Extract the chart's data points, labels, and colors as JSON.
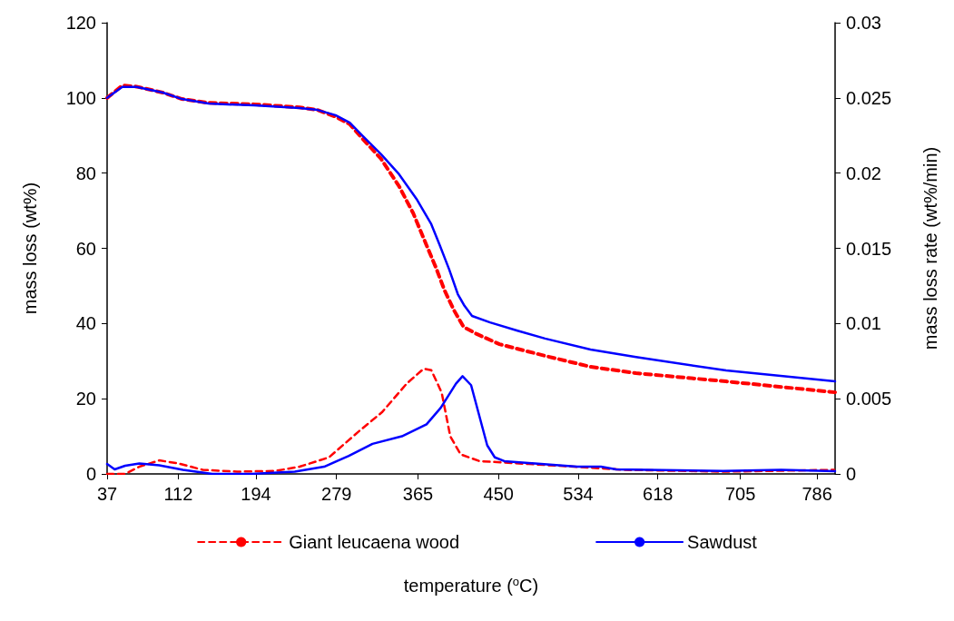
{
  "chart_data": {
    "type": "line",
    "xlabel": "temperature ($^{o}$C)",
    "ylabel": "mass loss (wt%)",
    "y2label": "mass loss rate (wt%/min)",
    "xlim": [
      37,
      805
    ],
    "xticks": [
      37,
      112,
      194,
      279,
      365,
      450,
      534,
      618,
      705,
      786
    ],
    "ylim": [
      0,
      120
    ],
    "yticks": [
      0,
      20,
      40,
      60,
      80,
      100,
      120
    ],
    "y2lim": [
      0,
      0.03
    ],
    "y2ticks": [
      0,
      0.005,
      0.01,
      0.015,
      0.02,
      0.025,
      0.03
    ],
    "grid": false,
    "legend": "bottom",
    "marker": "none",
    "series": [
      {
        "name": "Giant leucaena wood",
        "color": "#ff0000",
        "line_style": "dashed",
        "x": [
          37,
          53,
          68,
          96,
          116,
          144,
          192,
          240,
          259,
          278,
          293,
          307,
          326,
          345,
          360,
          374,
          384,
          393,
          403,
          413,
          427,
          451,
          499,
          547,
          595,
          690,
          805
        ],
        "values": [
          100,
          103.3,
          103,
          101.4,
          99.7,
          98.7,
          98.3,
          97.5,
          96.8,
          95,
          93,
          89,
          83.8,
          76.5,
          69.3,
          60.8,
          54.8,
          48.8,
          43.5,
          39.1,
          37.2,
          34.5,
          31.4,
          28.5,
          26.8,
          24.6,
          21.7
        ]
      },
      {
        "name": "Sawdust",
        "color": "#0000ff",
        "line_style": "solid",
        "x": [
          37,
          53,
          68,
          96,
          116,
          144,
          192,
          240,
          259,
          278,
          293,
          307,
          326,
          345,
          364,
          379,
          388,
          398,
          407,
          414,
          422,
          441,
          470,
          499,
          547,
          595,
          690,
          805
        ],
        "values": [
          100,
          102.9,
          102.9,
          101.4,
          99.7,
          98.5,
          98,
          97.3,
          96.8,
          95.4,
          93.4,
          89.8,
          85,
          79.7,
          72.9,
          66.4,
          60.8,
          54.3,
          47.8,
          44.7,
          42,
          40.3,
          38.1,
          36,
          33.1,
          31.1,
          27.5,
          24.6
        ]
      },
      {
        "color": "#ff0000",
        "line_style": "dashed",
        "axis": "y2",
        "x": [
          37,
          56,
          71,
          92,
          112,
          138,
          174,
          215,
          240,
          271,
          302,
          327,
          353,
          371,
          379,
          390,
          399,
          410,
          430,
          482,
          584,
          687,
          804
        ],
        "values": [
          0,
          0,
          0.00048,
          0.0009,
          0.0007,
          0.00027,
          0.00015,
          0.0002,
          0.00048,
          0.0011,
          0.0028,
          0.0041,
          0.006,
          0.007,
          0.0069,
          0.0054,
          0.0025,
          0.0013,
          0.00085,
          0.00066,
          0.00027,
          0.00015,
          0.00027
        ]
      },
      {
        "color": "#0000ff",
        "line_style": "solid",
        "axis": "y2",
        "x": [
          37,
          45,
          56,
          71,
          92,
          117,
          148,
          189,
          235,
          266,
          292,
          317,
          348,
          374,
          389,
          405,
          412,
          421,
          438,
          446,
          456,
          533,
          558,
          574,
          687,
          748,
          805
        ],
        "values": [
          0.00066,
          0.0003,
          0.00054,
          0.0007,
          0.00057,
          0.00027,
          0,
          0,
          0.00015,
          0.00048,
          0.0012,
          0.002,
          0.0025,
          0.0033,
          0.0044,
          0.006,
          0.0065,
          0.0059,
          0.0019,
          0.0011,
          0.00085,
          0.00048,
          0.00048,
          0.0003,
          0.0002,
          0.00027,
          0.00018
        ]
      }
    ]
  }
}
